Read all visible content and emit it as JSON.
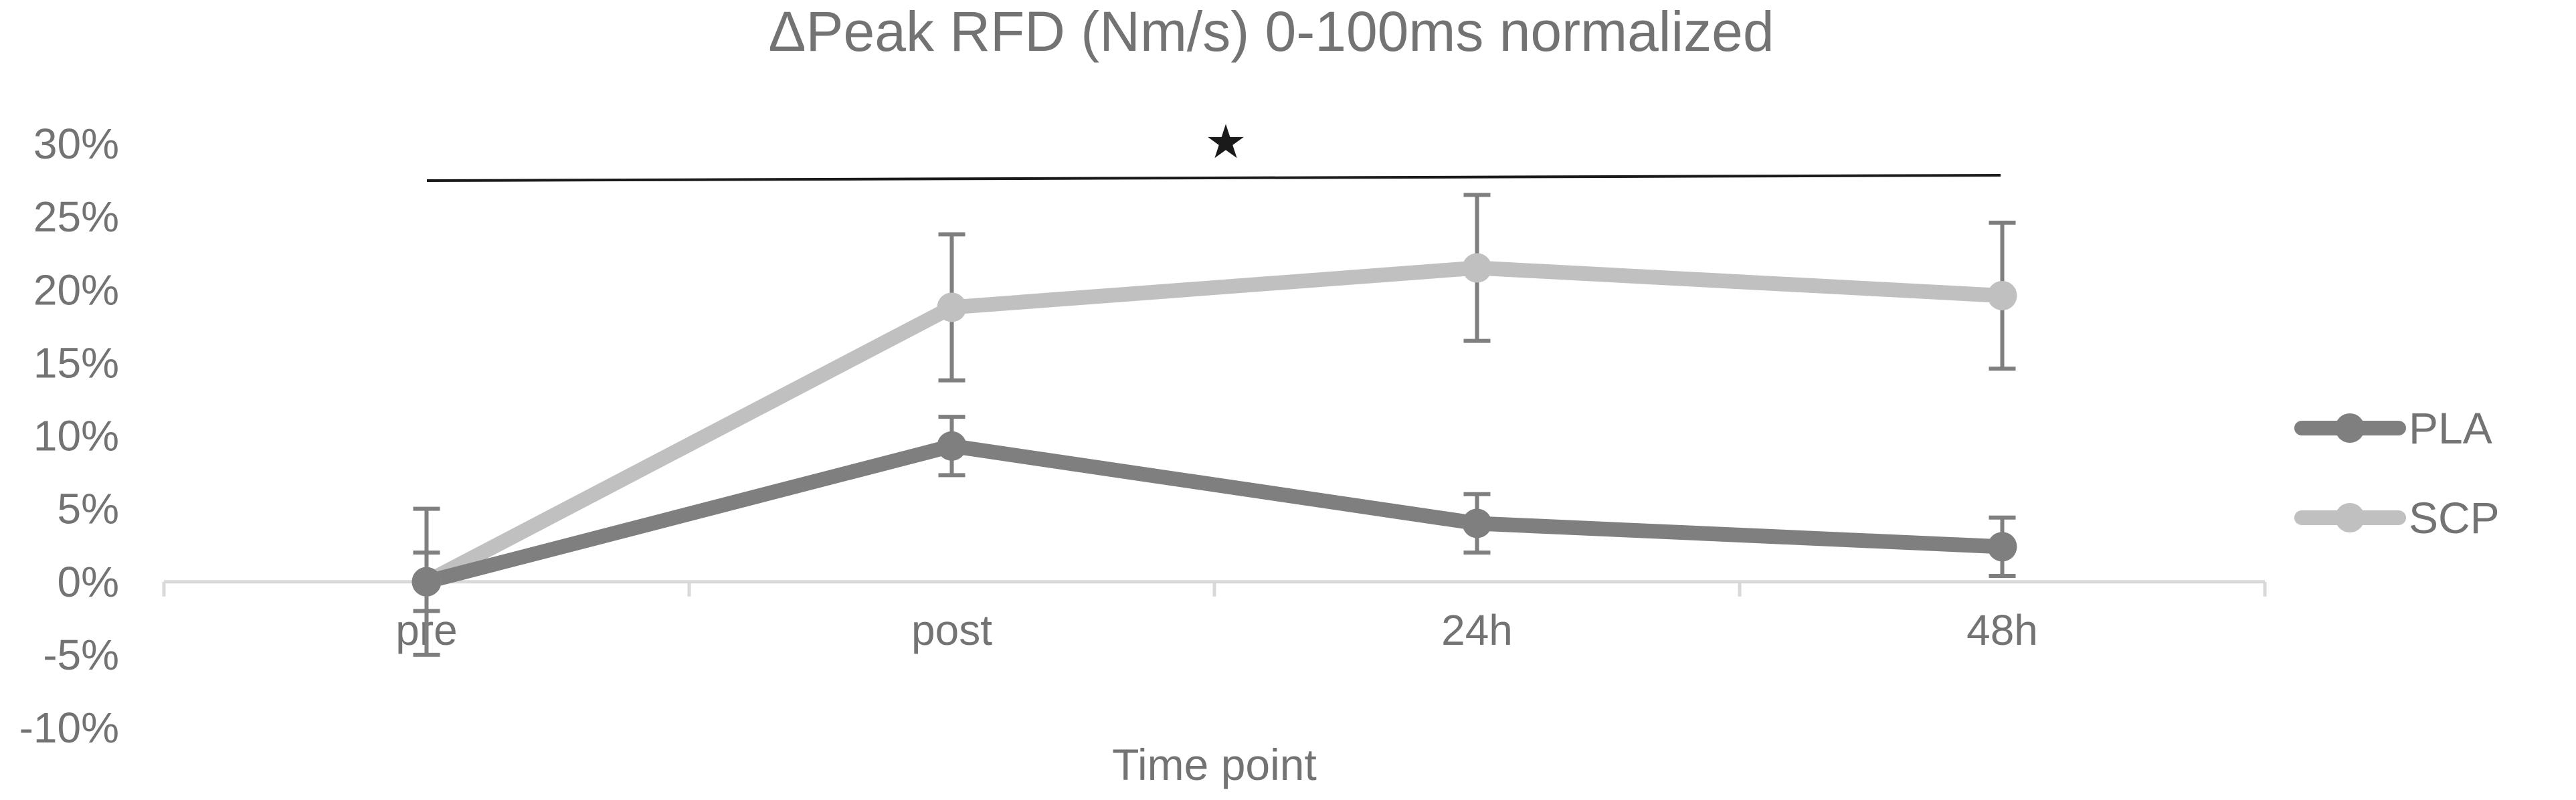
{
  "chart_data": {
    "type": "line",
    "title": "ΔPeak RFD (Nm/s) 0-100ms normalized",
    "xlabel": "Time point",
    "ylabel": "",
    "categories": [
      "pre",
      "post",
      "24h",
      "48h"
    ],
    "yticks": [
      "30%",
      "25%",
      "20%",
      "15%",
      "10%",
      "5%",
      "0%",
      "-5%",
      "-10%"
    ],
    "ylim": [
      -10,
      30
    ],
    "series": [
      {
        "name": "PLA",
        "color": "#7f7f7f",
        "values": [
          0,
          9.3,
          4.0,
          2.4
        ],
        "err_low": [
          5.0,
          2.0,
          2.0,
          2.0
        ],
        "err_high": [
          5.0,
          2.0,
          2.0,
          2.0
        ]
      },
      {
        "name": "SCP",
        "color": "#c0c0c0",
        "values": [
          0,
          18.8,
          21.5,
          19.6
        ],
        "err_low": [
          2.0,
          5.0,
          5.0,
          5.0
        ],
        "err_high": [
          2.0,
          5.0,
          5.0,
          5.0
        ]
      }
    ],
    "annotation": {
      "symbol": "★"
    },
    "grid": false,
    "legend": "right"
  }
}
